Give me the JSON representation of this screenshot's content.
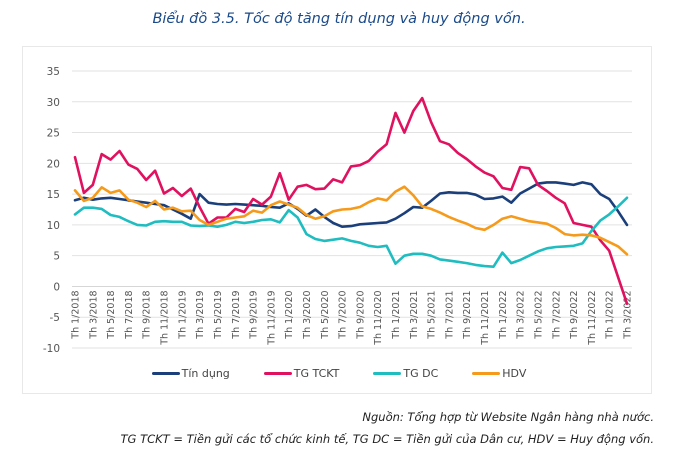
{
  "title": "Biểu đồ 3.5. Tốc độ tăng tín dụng và huy động vốn.",
  "notes": {
    "source": "Nguồn: Tổng hợp từ Website Ngân hàng nhà nước.",
    "abbrev": "TG TCKT = Tiền gửi các tổ chức kinh tế, TG DC = Tiền gửi của Dân cư, HDV = Huy động vốn."
  },
  "legend": [
    {
      "label": "Tín dụng",
      "color": "#1b3f7a"
    },
    {
      "label": "TG TCKT",
      "color": "#e0115f"
    },
    {
      "label": "TG DC",
      "color": "#1fbcc0"
    },
    {
      "label": "HDV",
      "color": "#f59a1b"
    }
  ],
  "chart_data": {
    "type": "line",
    "title": "Biểu đồ 3.5. Tốc độ tăng tín dụng và huy động vốn.",
    "xlabel": "",
    "ylabel": "",
    "ylim": [
      -10,
      35
    ],
    "yticks": [
      35,
      30,
      25,
      20,
      15,
      10,
      5,
      0,
      -5,
      -10
    ],
    "grid": true,
    "legend_position": "bottom",
    "xtick_labels": [
      "Th 1/2018",
      "Th 3/2018",
      "Th 5/2018",
      "Th 7/2018",
      "Th 9/2018",
      "Th 11/2018",
      "Th 1/2019",
      "Th 3/2019",
      "Th 5/2019",
      "Th 7/2019",
      "Th 9/2019",
      "Th 11/2019",
      "Th 1/2020",
      "Th 3/2020",
      "Th 5/2020",
      "Th 7/2020",
      "Th 9/2020",
      "Th 11/2020",
      "Th 1/2021",
      "Th 3/2021",
      "Th 5/2021",
      "Th 7/2021",
      "Th 9/2021",
      "Th 11/2021",
      "Th 1/2022",
      "Th 3/2022",
      "Th 5/2022",
      "Th 7/2022",
      "Th 9/2022",
      "Th 11/2022",
      "Th 1/2022",
      "Th 3/2022"
    ],
    "series": [
      {
        "name": "Tín dụng",
        "color": "#1b3f7a",
        "values": [
          14.0,
          14.4,
          14.1,
          14.3,
          14.4,
          14.2,
          14.0,
          13.8,
          13.6,
          13.4,
          13.2,
          12.5,
          11.8,
          11.0,
          15.0,
          13.6,
          13.4,
          13.3,
          13.4,
          13.3,
          13.2,
          13.1,
          12.9,
          12.8,
          13.5,
          12.6,
          11.5,
          12.5,
          11.3,
          10.3,
          9.7,
          9.8,
          10.1,
          10.2,
          10.3,
          10.4,
          11.0,
          11.9,
          12.9,
          12.8,
          13.9,
          15.1,
          15.3,
          15.2,
          15.2,
          14.9,
          14.2,
          14.3,
          14.6,
          13.6,
          15.1,
          15.9,
          16.7,
          16.9,
          16.9,
          16.7,
          16.5,
          16.9,
          16.6,
          15.0,
          14.2,
          12.2,
          10.0
        ]
      },
      {
        "name": "TG TCKT",
        "color": "#e0115f",
        "values": [
          21.0,
          15.2,
          16.5,
          21.5,
          20.6,
          22.0,
          19.8,
          19.1,
          17.3,
          18.8,
          15.1,
          16.0,
          14.7,
          15.9,
          12.9,
          10.2,
          11.2,
          11.2,
          12.6,
          12.1,
          14.2,
          13.3,
          14.6,
          18.4,
          14.1,
          16.2,
          16.5,
          15.8,
          15.9,
          17.4,
          16.9,
          19.5,
          19.7,
          20.4,
          21.9,
          23.1,
          28.2,
          25.0,
          28.5,
          30.6,
          26.7,
          23.6,
          23.1,
          21.7,
          20.7,
          19.5,
          18.5,
          17.9,
          16.0,
          15.7,
          19.4,
          19.2,
          16.5,
          15.5,
          14.4,
          13.5,
          10.3,
          10.0,
          9.7,
          7.5,
          5.8,
          1.5,
          -2.8
        ]
      },
      {
        "name": "TG DC",
        "color": "#1fbcc0",
        "values": [
          11.7,
          12.8,
          12.8,
          12.6,
          11.6,
          11.3,
          10.6,
          10.0,
          9.9,
          10.5,
          10.6,
          10.5,
          10.5,
          9.9,
          9.8,
          9.9,
          9.7,
          10.0,
          10.5,
          10.3,
          10.5,
          10.8,
          10.9,
          10.4,
          12.4,
          11.2,
          8.5,
          7.7,
          7.4,
          7.6,
          7.8,
          7.4,
          7.1,
          6.6,
          6.4,
          6.6,
          3.7,
          5.0,
          5.3,
          5.3,
          5.0,
          4.4,
          4.2,
          4.0,
          3.8,
          3.5,
          3.3,
          3.2,
          5.5,
          3.8,
          4.3,
          5.0,
          5.7,
          6.2,
          6.4,
          6.5,
          6.6,
          7.0,
          9.0,
          10.7,
          11.7,
          13.0,
          14.4
        ]
      },
      {
        "name": "HDV",
        "color": "#f59a1b",
        "values": [
          15.6,
          13.9,
          14.4,
          16.1,
          15.2,
          15.6,
          14.1,
          13.6,
          12.9,
          13.9,
          12.5,
          12.8,
          12.2,
          12.3,
          10.8,
          10.0,
          10.5,
          11.0,
          11.2,
          11.4,
          12.3,
          12.0,
          13.2,
          13.8,
          13.3,
          12.8,
          11.6,
          11.0,
          11.4,
          12.2,
          12.5,
          12.6,
          12.9,
          13.7,
          14.3,
          14.0,
          15.4,
          16.2,
          14.8,
          13.0,
          12.6,
          12.0,
          11.3,
          10.7,
          10.2,
          9.5,
          9.2,
          10.0,
          11.0,
          11.4,
          11.0,
          10.6,
          10.4,
          10.2,
          9.5,
          8.5,
          8.3,
          8.4,
          8.3,
          7.9,
          7.2,
          6.5,
          5.2
        ]
      }
    ]
  }
}
